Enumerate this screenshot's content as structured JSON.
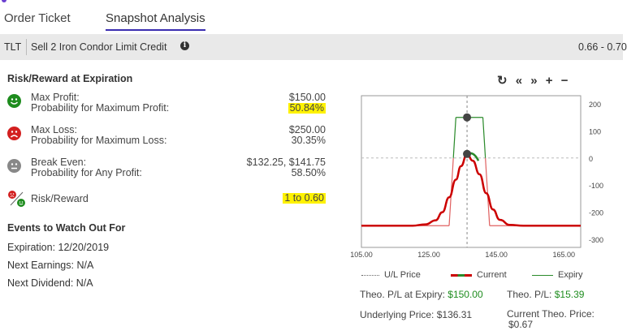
{
  "tabs": [
    {
      "label": "Order Ticket"
    },
    {
      "label": "Snapshot Analysis"
    }
  ],
  "ticket": {
    "symbol": "TLT",
    "description": "Sell 2 Iron Condor Limit Credit",
    "price_range": "0.66 - 0.70"
  },
  "risk_reward": {
    "title": "Risk/Reward at Expiration",
    "max_profit_label": "Max Profit:",
    "max_profit_value": "$150.00",
    "prob_max_profit_label": "Probability for Maximum Profit:",
    "prob_max_profit_value": "50.84%",
    "max_loss_label": "Max Loss:",
    "max_loss_value": "$250.00",
    "prob_max_loss_label": "Probability for Maximum Loss:",
    "prob_max_loss_value": "30.35%",
    "break_even_label": "Break Even:",
    "break_even_value": "$132.25, $141.75",
    "prob_any_profit_label": "Probability for Any Profit:",
    "prob_any_profit_value": "58.50%",
    "risk_reward_label": "Risk/Reward",
    "risk_reward_value": "1 to 0.60"
  },
  "events": {
    "title": "Events to Watch Out For",
    "expiration": "Expiration: 12/20/2019",
    "next_earnings": "Next Earnings: N/A",
    "next_dividend": "Next Dividend: N/A"
  },
  "controls": {
    "refresh": "↻",
    "back": "«",
    "forward": "»",
    "zoom_in": "+",
    "zoom_out": "−"
  },
  "legend": {
    "ul_price": "U/L Price",
    "current": "Current",
    "expiry": "Expiry"
  },
  "stats": {
    "theo_pl_expiry_label": "Theo. P/L at Expiry:",
    "theo_pl_expiry_value": "$150.00",
    "theo_pl_label": "Theo. P/L:",
    "theo_pl_value": "$15.39",
    "underlying_label": "Underlying Price:",
    "underlying_value": "$136.31",
    "current_theo_label": "Current Theo. Price:",
    "current_theo_value": "$0.67"
  },
  "colors": {
    "current": "#cc0000",
    "expiry_profit": "#2a8a2a",
    "expiry_loss": "#e06060",
    "highlight": "#fff200"
  },
  "chart_data": {
    "type": "line",
    "x_ticks": [
      "105.00",
      "125.00",
      "145.00",
      "165.00"
    ],
    "y_ticks": [
      "200",
      "100",
      "0",
      "-100",
      "-200",
      "-300"
    ],
    "xlim": [
      105,
      170
    ],
    "ylim": [
      -330,
      230
    ],
    "ul_price": 136.31,
    "series": [
      {
        "name": "Current",
        "x": [
          105,
          120,
          124,
          127,
          129,
          131,
          133,
          134.5,
          136.31,
          138,
          140,
          142,
          144,
          146,
          149,
          153,
          170
        ],
        "y": [
          -250,
          -250,
          -245,
          -230,
          -200,
          -145,
          -80,
          -30,
          15,
          -10,
          -60,
          -130,
          -190,
          -228,
          -247,
          -250,
          -250
        ]
      },
      {
        "name": "Expiry",
        "x": [
          105,
          131,
          132.25,
          133,
          141,
          141.75,
          143,
          170
        ],
        "y": [
          -250,
          -250,
          0,
          150,
          150,
          0,
          -250,
          -250
        ]
      }
    ]
  }
}
